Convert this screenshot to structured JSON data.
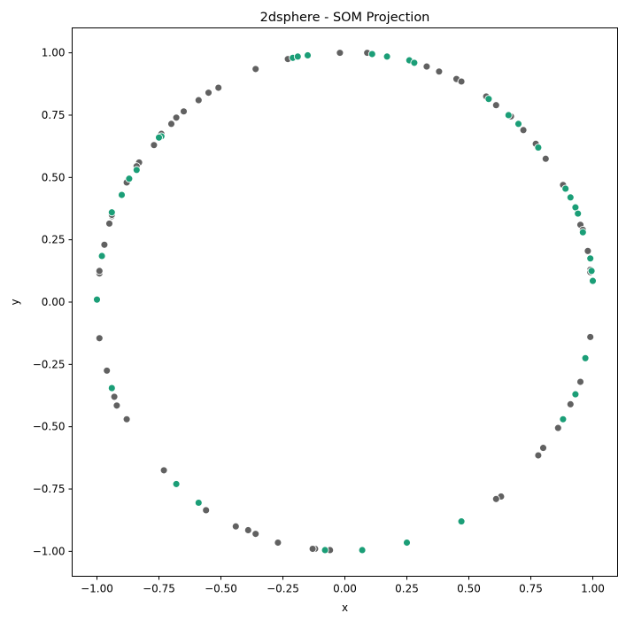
{
  "chart_data": {
    "type": "scatter",
    "title": "2dsphere - SOM Projection",
    "xlabel": "x",
    "ylabel": "y",
    "xlim": [
      -1.1,
      1.1
    ],
    "ylim": [
      -1.1,
      1.1
    ],
    "xticks": [
      -1.0,
      -0.75,
      -0.5,
      -0.25,
      0.0,
      0.25,
      0.5,
      0.75,
      1.0
    ],
    "yticks": [
      -1.0,
      -0.75,
      -0.5,
      -0.25,
      0.0,
      0.25,
      0.5,
      0.75,
      1.0
    ],
    "xtick_labels": [
      "−1.00",
      "−0.75",
      "−0.50",
      "−0.25",
      "0.00",
      "0.25",
      "0.50",
      "0.75",
      "1.00"
    ],
    "ytick_labels": [
      "−1.00",
      "−0.75",
      "−0.50",
      "−0.25",
      "0.00",
      "0.25",
      "0.50",
      "0.75",
      "1.00"
    ],
    "grid": false,
    "colors": {
      "gray": "#616161",
      "green": "#1b9e77",
      "edge": "#ffffff"
    },
    "series": [
      {
        "name": "gray",
        "color": "#616161",
        "points": [
          [
            -0.02,
            1.0
          ],
          [
            0.09,
            1.0
          ],
          [
            -0.23,
            0.975
          ],
          [
            -0.36,
            0.935
          ],
          [
            0.33,
            0.945
          ],
          [
            0.38,
            0.925
          ],
          [
            0.45,
            0.895
          ],
          [
            0.47,
            0.885
          ],
          [
            0.57,
            0.825
          ],
          [
            0.61,
            0.79
          ],
          [
            0.67,
            0.745
          ],
          [
            0.72,
            0.69
          ],
          [
            0.77,
            0.635
          ],
          [
            0.81,
            0.575
          ],
          [
            0.88,
            0.47
          ],
          [
            0.95,
            0.31
          ],
          [
            0.96,
            0.29
          ],
          [
            0.98,
            0.205
          ],
          [
            0.99,
            0.13
          ],
          [
            0.99,
            0.12
          ],
          [
            0.99,
            -0.14
          ],
          [
            0.95,
            -0.32
          ],
          [
            0.91,
            -0.41
          ],
          [
            0.86,
            -0.505
          ],
          [
            0.8,
            -0.585
          ],
          [
            0.78,
            -0.615
          ],
          [
            0.63,
            -0.78
          ],
          [
            0.61,
            -0.79
          ],
          [
            -0.12,
            -0.99
          ],
          [
            -0.13,
            -0.99
          ],
          [
            -0.06,
            -0.995
          ],
          [
            -0.27,
            -0.965
          ],
          [
            -0.36,
            -0.93
          ],
          [
            -0.39,
            -0.915
          ],
          [
            -0.44,
            -0.9
          ],
          [
            -0.56,
            -0.835
          ],
          [
            -0.73,
            -0.675
          ],
          [
            -0.88,
            -0.47
          ],
          [
            -0.92,
            -0.415
          ],
          [
            -0.93,
            -0.38
          ],
          [
            -0.96,
            -0.275
          ],
          [
            -0.99,
            -0.145
          ],
          [
            -0.99,
            0.115
          ],
          [
            -0.99,
            0.125
          ],
          [
            -0.97,
            0.23
          ],
          [
            -0.95,
            0.315
          ],
          [
            -0.94,
            0.345
          ],
          [
            -0.94,
            0.35
          ],
          [
            -0.88,
            0.48
          ],
          [
            -0.83,
            0.56
          ],
          [
            -0.84,
            0.545
          ],
          [
            -0.77,
            0.63
          ],
          [
            -0.74,
            0.675
          ],
          [
            -0.7,
            0.715
          ],
          [
            -0.68,
            0.74
          ],
          [
            -0.65,
            0.765
          ],
          [
            -0.59,
            0.81
          ],
          [
            -0.55,
            0.84
          ],
          [
            -0.51,
            0.86
          ]
        ]
      },
      {
        "name": "green",
        "color": "#1b9e77",
        "points": [
          [
            -0.21,
            0.98
          ],
          [
            -0.19,
            0.985
          ],
          [
            -0.15,
            0.99
          ],
          [
            0.11,
            0.995
          ],
          [
            0.17,
            0.985
          ],
          [
            0.26,
            0.97
          ],
          [
            0.28,
            0.96
          ],
          [
            0.58,
            0.815
          ],
          [
            0.66,
            0.75
          ],
          [
            0.7,
            0.715
          ],
          [
            0.78,
            0.62
          ],
          [
            0.89,
            0.455
          ],
          [
            0.91,
            0.42
          ],
          [
            0.93,
            0.38
          ],
          [
            0.94,
            0.355
          ],
          [
            0.96,
            0.28
          ],
          [
            0.99,
            0.175
          ],
          [
            0.995,
            0.125
          ],
          [
            1.0,
            0.085
          ],
          [
            0.97,
            -0.225
          ],
          [
            0.93,
            -0.37
          ],
          [
            0.88,
            -0.47
          ],
          [
            0.47,
            -0.88
          ],
          [
            0.25,
            -0.965
          ],
          [
            0.07,
            -0.995
          ],
          [
            -0.08,
            -0.995
          ],
          [
            -0.59,
            -0.805
          ],
          [
            -0.68,
            -0.73
          ],
          [
            -0.94,
            -0.345
          ],
          [
            -1.0,
            0.01
          ],
          [
            -0.98,
            0.185
          ],
          [
            -0.94,
            0.36
          ],
          [
            -0.9,
            0.43
          ],
          [
            -0.87,
            0.495
          ],
          [
            -0.84,
            0.53
          ],
          [
            -0.74,
            0.665
          ],
          [
            -0.75,
            0.66
          ]
        ]
      }
    ]
  }
}
